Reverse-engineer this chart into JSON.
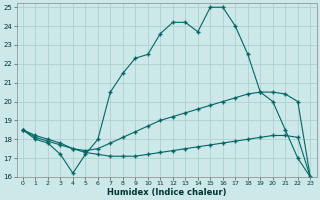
{
  "xlabel": "Humidex (Indice chaleur)",
  "bg_color": "#cce8e8",
  "grid_color": "#aacccc",
  "line_color": "#006666",
  "xlim": [
    -0.5,
    23.5
  ],
  "ylim": [
    16,
    25.2
  ],
  "xticks": [
    0,
    1,
    2,
    3,
    4,
    5,
    6,
    7,
    8,
    9,
    10,
    11,
    12,
    13,
    14,
    15,
    16,
    17,
    18,
    19,
    20,
    21,
    22,
    23
  ],
  "yticks": [
    16,
    17,
    18,
    19,
    20,
    21,
    22,
    23,
    24,
    25
  ],
  "series1_x": [
    0,
    1,
    2,
    3,
    4,
    5,
    6,
    7,
    8,
    9,
    10,
    11,
    12,
    13,
    14,
    15,
    16,
    17,
    18,
    19,
    20,
    21,
    22,
    23
  ],
  "series1_y": [
    18.5,
    18.0,
    17.8,
    17.2,
    16.2,
    17.2,
    18.0,
    20.5,
    21.5,
    22.3,
    22.5,
    23.6,
    24.2,
    24.2,
    23.7,
    25.0,
    25.0,
    24.0,
    22.5,
    20.5,
    20.0,
    18.5,
    17.0,
    16.0
  ],
  "series2_x": [
    0,
    1,
    2,
    3,
    4,
    5,
    6,
    7,
    8,
    9,
    10,
    11,
    12,
    13,
    14,
    15,
    16,
    17,
    18,
    19,
    20,
    21,
    22,
    23
  ],
  "series2_y": [
    18.5,
    18.1,
    17.9,
    17.7,
    17.5,
    17.3,
    17.2,
    17.1,
    17.1,
    17.1,
    17.2,
    17.3,
    17.4,
    17.5,
    17.6,
    17.7,
    17.8,
    17.9,
    18.0,
    18.1,
    18.2,
    18.2,
    18.1,
    16.0
  ],
  "series3_x": [
    0,
    1,
    2,
    3,
    4,
    5,
    6,
    7,
    8,
    9,
    10,
    11,
    12,
    13,
    14,
    15,
    16,
    17,
    18,
    19,
    20,
    21,
    22,
    23
  ],
  "series3_y": [
    18.5,
    18.2,
    18.0,
    17.8,
    17.5,
    17.4,
    17.5,
    17.8,
    18.1,
    18.4,
    18.7,
    19.0,
    19.2,
    19.4,
    19.6,
    19.8,
    20.0,
    20.2,
    20.4,
    20.5,
    20.5,
    20.4,
    20.0,
    16.0
  ]
}
